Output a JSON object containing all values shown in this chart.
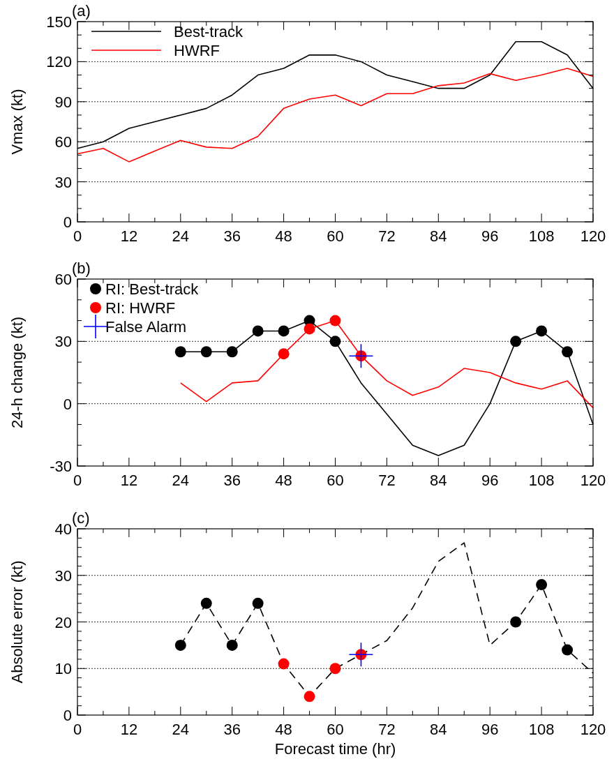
{
  "chart_data": [
    {
      "type": "line",
      "title": "(a)",
      "ylabel": "Vmax (kt)",
      "x": [
        0,
        6,
        12,
        18,
        24,
        30,
        36,
        42,
        48,
        54,
        60,
        66,
        72,
        78,
        84,
        90,
        96,
        102,
        108,
        114,
        120
      ],
      "xlim": [
        0,
        120
      ],
      "xticks": [
        0,
        {
          "value": 6,
          "label": null
        },
        12,
        {
          "value": 18,
          "label": null
        },
        24,
        {
          "value": 30,
          "label": null
        },
        36,
        {
          "value": 42,
          "label": null
        },
        48,
        {
          "value": 54,
          "label": null
        },
        60,
        {
          "value": 66,
          "label": null
        },
        72,
        {
          "value": 78,
          "label": null
        },
        84,
        {
          "value": 90,
          "label": null
        },
        96,
        {
          "value": 102,
          "label": null
        },
        108,
        {
          "value": 114,
          "label": null
        },
        120
      ],
      "ylim": [
        0,
        150
      ],
      "yticks": [
        0,
        {
          "value": 10,
          "label": null
        },
        {
          "value": 20,
          "label": null
        },
        30,
        {
          "value": 40,
          "label": null
        },
        {
          "value": 50,
          "label": null
        },
        60,
        {
          "value": 70,
          "label": null
        },
        {
          "value": 80,
          "label": null
        },
        90,
        {
          "value": 100,
          "label": null
        },
        {
          "value": 110,
          "label": null
        },
        120,
        {
          "value": 130,
          "label": null
        },
        {
          "value": 140,
          "label": null
        },
        150
      ],
      "grid": "y",
      "legend": "top left",
      "series": [
        {
          "name": "Best-track",
          "color": "#000000",
          "values": [
            55,
            60,
            70,
            75,
            80,
            85,
            95,
            110,
            115,
            125,
            125,
            120,
            110,
            105,
            100,
            100,
            110,
            135,
            135,
            125,
            100
          ]
        },
        {
          "name": "HWRF",
          "color": "#ff0000",
          "values": [
            51,
            55,
            45,
            53,
            61,
            56,
            55,
            64,
            85,
            92,
            95,
            87,
            96,
            96,
            102,
            104,
            111,
            106,
            110,
            115,
            109
          ]
        }
      ]
    },
    {
      "type": "line",
      "title": "(b)",
      "ylabel": "24-h change (kt)",
      "xlim": [
        0,
        120
      ],
      "xticks": [
        0,
        {
          "value": 6,
          "label": null
        },
        12,
        {
          "value": 18,
          "label": null
        },
        24,
        {
          "value": 30,
          "label": null
        },
        36,
        {
          "value": 42,
          "label": null
        },
        48,
        {
          "value": 54,
          "label": null
        },
        60,
        {
          "value": 66,
          "label": null
        },
        72,
        {
          "value": 78,
          "label": null
        },
        84,
        {
          "value": 90,
          "label": null
        },
        96,
        {
          "value": 102,
          "label": null
        },
        108,
        {
          "value": 114,
          "label": null
        },
        120
      ],
      "ylim": [
        -30,
        60
      ],
      "yticks": [
        -30,
        {
          "value": -20,
          "label": null
        },
        {
          "value": -10,
          "label": null
        },
        0,
        {
          "value": 10,
          "label": null
        },
        {
          "value": 20,
          "label": null
        },
        30,
        {
          "value": 40,
          "label": null
        },
        {
          "value": 50,
          "label": null
        },
        60
      ],
      "grid": "y",
      "legend": "top left",
      "series": [
        {
          "color": "#000000",
          "x": [
            24,
            30,
            36,
            42,
            48,
            54,
            60,
            66,
            72,
            78,
            84,
            90,
            96,
            102,
            108,
            114,
            120
          ],
          "values": [
            25,
            25,
            25,
            35,
            35,
            40,
            30,
            10,
            -5,
            -20,
            -25,
            -20,
            0,
            30,
            35,
            25,
            -10
          ]
        },
        {
          "color": "#ff0000",
          "x": [
            24,
            30,
            36,
            42,
            48,
            54,
            60,
            66,
            72,
            78,
            84,
            90,
            96,
            102,
            108,
            114,
            120
          ],
          "values": [
            10,
            1,
            10,
            11,
            24,
            36,
            40,
            23,
            11,
            4,
            8,
            17,
            15,
            10,
            7,
            11,
            -2
          ]
        },
        {
          "name": "RI: Best-track",
          "type": "scatter",
          "marker": "circle",
          "color": "#000000",
          "x": [
            24,
            30,
            36,
            42,
            48,
            54,
            60,
            102,
            108,
            114
          ],
          "values": [
            25,
            25,
            25,
            35,
            35,
            40,
            30,
            30,
            35,
            25
          ]
        },
        {
          "name": "RI: HWRF",
          "type": "scatter",
          "marker": "circle",
          "color": "#ff0000",
          "x": [
            48,
            54,
            60,
            66
          ],
          "values": [
            24,
            36,
            40,
            23
          ]
        },
        {
          "name": "False Alarm",
          "type": "scatter",
          "marker": "cross",
          "color": "#0000ff",
          "x": [
            66
          ],
          "values": [
            23
          ]
        }
      ]
    },
    {
      "type": "line",
      "title": "(c)",
      "xlabel": "Forecast time (hr)",
      "ylabel": "Absolute error (kt)",
      "xlim": [
        0,
        120
      ],
      "xticks": [
        0,
        {
          "value": 6,
          "label": null
        },
        12,
        {
          "value": 18,
          "label": null
        },
        24,
        {
          "value": 30,
          "label": null
        },
        36,
        {
          "value": 42,
          "label": null
        },
        48,
        {
          "value": 54,
          "label": null
        },
        60,
        {
          "value": 66,
          "label": null
        },
        72,
        {
          "value": 78,
          "label": null
        },
        84,
        {
          "value": 90,
          "label": null
        },
        96,
        {
          "value": 102,
          "label": null
        },
        108,
        {
          "value": 114,
          "label": null
        },
        120
      ],
      "ylim": [
        0,
        40
      ],
      "yticks": [
        0,
        {
          "value": 2,
          "label": null
        },
        {
          "value": 4,
          "label": null
        },
        {
          "value": 6,
          "label": null
        },
        {
          "value": 8,
          "label": null
        },
        10,
        {
          "value": 12,
          "label": null
        },
        {
          "value": 14,
          "label": null
        },
        {
          "value": 16,
          "label": null
        },
        {
          "value": 18,
          "label": null
        },
        20,
        {
          "value": 22,
          "label": null
        },
        {
          "value": 24,
          "label": null
        },
        {
          "value": 26,
          "label": null
        },
        {
          "value": 28,
          "label": null
        },
        30,
        {
          "value": 32,
          "label": null
        },
        {
          "value": 34,
          "label": null
        },
        {
          "value": 36,
          "label": null
        },
        {
          "value": 38,
          "label": null
        },
        40
      ],
      "grid": "y",
      "series": [
        {
          "color": "#000000",
          "line_style": "dashed",
          "x": [
            24,
            30,
            36,
            42,
            48,
            54,
            60,
            66,
            72,
            78,
            84,
            90,
            96,
            102,
            108,
            114,
            120
          ],
          "values": [
            15,
            24,
            15,
            24,
            11,
            4,
            10,
            13,
            16,
            23,
            33,
            37,
            15,
            20,
            28,
            14,
            9
          ]
        },
        {
          "type": "scatter",
          "marker": "circle",
          "color": "#000000",
          "x": [
            24,
            30,
            36,
            42,
            102,
            108,
            114
          ],
          "values": [
            15,
            24,
            15,
            24,
            20,
            28,
            14
          ]
        },
        {
          "type": "scatter",
          "marker": "circle",
          "color": "#ff0000",
          "x": [
            48,
            54,
            60,
            66
          ],
          "values": [
            11,
            4,
            10,
            13
          ]
        },
        {
          "type": "scatter",
          "marker": "cross",
          "color": "#0000ff",
          "x": [
            66
          ],
          "values": [
            13
          ]
        }
      ]
    }
  ]
}
